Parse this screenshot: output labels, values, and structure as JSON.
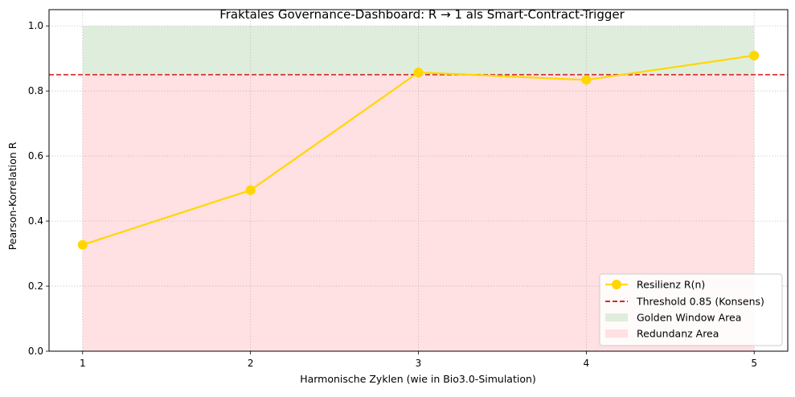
{
  "chart_data": {
    "type": "line",
    "title": "Fraktales Governance-Dashboard: R → 1 als Smart-Contract-Trigger",
    "xlabel": "Harmonische Zyklen (wie in Bio3.0-Simulation)",
    "ylabel": "Pearson-Korrelation R",
    "x": [
      1,
      2,
      3,
      4,
      5
    ],
    "xlim": [
      0.8,
      5.2
    ],
    "ylim": [
      0.0,
      1.05
    ],
    "xticks": [
      1,
      2,
      3,
      4,
      5
    ],
    "yticks": [
      "0.0",
      "0.2",
      "0.4",
      "0.6",
      "0.8",
      "1.0"
    ],
    "grid": true,
    "legend_position": "lower-right",
    "series": [
      {
        "name": "Resilienz R(n)",
        "values": [
          0.327,
          0.495,
          0.857,
          0.834,
          0.909
        ],
        "color": "#FFD700"
      }
    ],
    "threshold": {
      "name": "Threshold 0.85 (Konsens)",
      "value": 0.85,
      "color": "#D62728"
    },
    "areas": [
      {
        "name": "Golden Window Area",
        "from": 0.85,
        "to": 1.0,
        "x_from": 1,
        "x_to": 5,
        "color": "#DFEEDC"
      },
      {
        "name": "Redundanz Area",
        "from": 0.0,
        "to": 0.85,
        "x_from": 1,
        "x_to": 5,
        "color": "#FFE0E3"
      }
    ]
  }
}
